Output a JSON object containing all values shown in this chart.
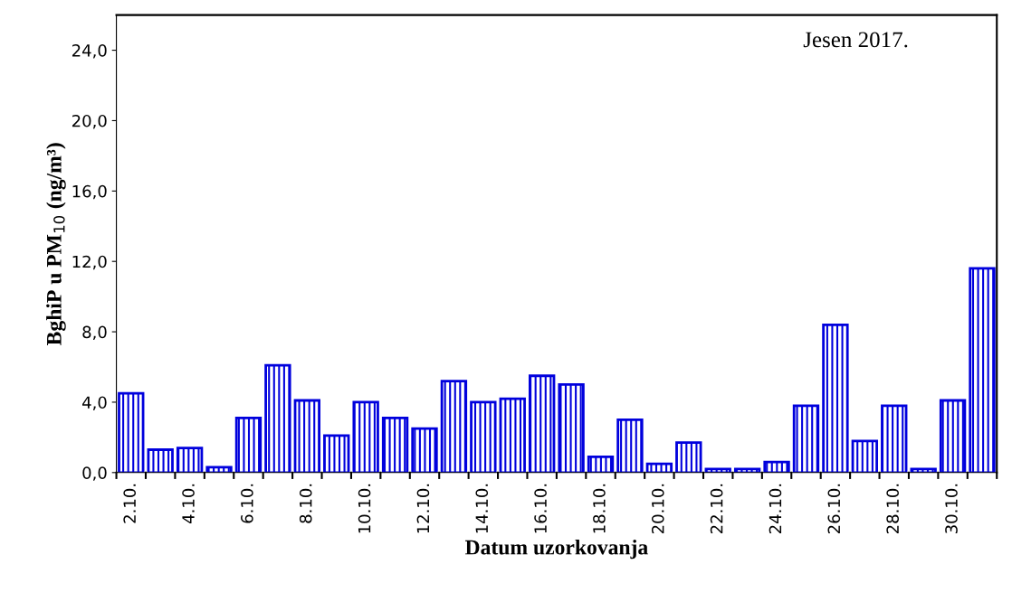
{
  "chart_data": {
    "type": "bar",
    "categories": [
      "2.10.",
      null,
      "4.10.",
      null,
      "6.10.",
      null,
      "8.10.",
      null,
      "10.10.",
      null,
      "12.10.",
      null,
      "14.10.",
      null,
      "16.10.",
      null,
      "18.10.",
      null,
      "20.10.",
      null,
      "22.10.",
      null,
      "24.10.",
      null,
      "26.10.",
      null,
      "28.10.",
      null,
      "30.10.",
      null
    ],
    "values": [
      4.5,
      1.3,
      1.4,
      0.3,
      3.1,
      6.1,
      4.1,
      2.1,
      4.0,
      3.1,
      2.5,
      5.2,
      4.0,
      4.2,
      5.5,
      5.0,
      0.9,
      3.0,
      0.5,
      1.7,
      0.2,
      0.2,
      0.6,
      3.8,
      8.4,
      1.8,
      3.8,
      0.2,
      4.1,
      11.6
    ],
    "color": "#0000dd",
    "xlabel": "Datum uzorkovanja",
    "ylabel": "BghiP u PM$_{10}$ (ng/m³)",
    "annotations": [
      "Jesen 2017."
    ],
    "ylim": [
      0,
      26
    ],
    "yticks": [
      {
        "value": 0,
        "label": "0,0"
      },
      {
        "value": 4,
        "label": "4,0"
      },
      {
        "value": 8,
        "label": "8,0"
      },
      {
        "value": 12,
        "label": "12,0"
      },
      {
        "value": 16,
        "label": "16,0"
      },
      {
        "value": 20,
        "label": "20,0"
      },
      {
        "value": 24,
        "label": "24,0"
      }
    ],
    "grid": false,
    "legend": false
  }
}
